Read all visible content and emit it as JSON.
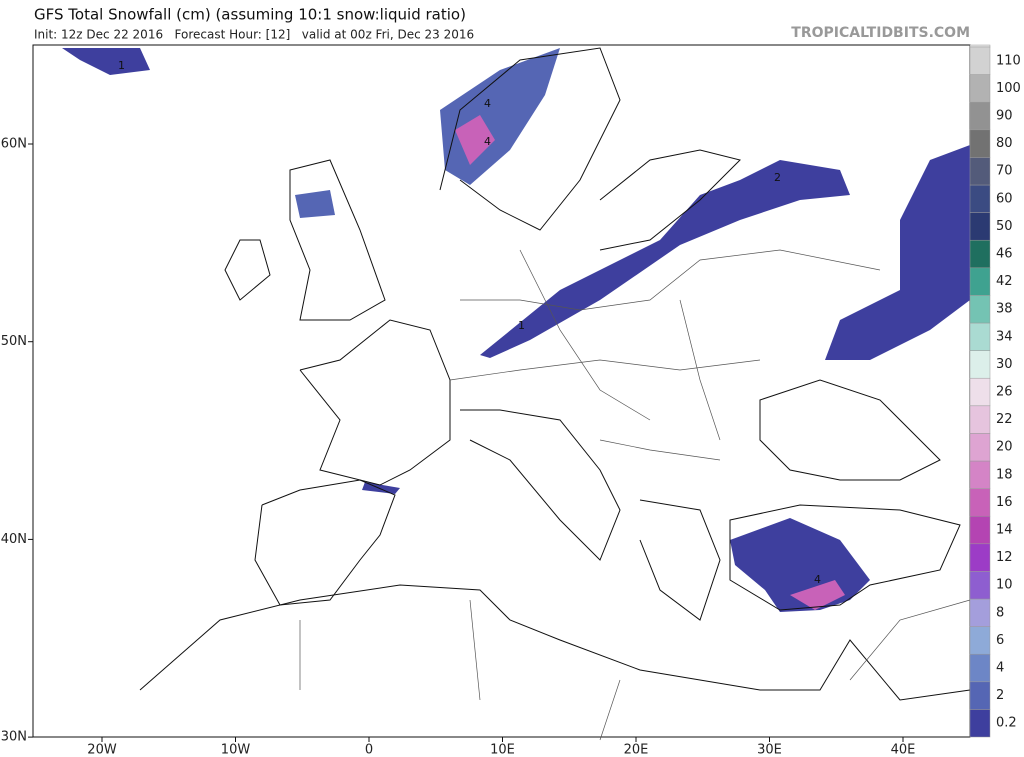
{
  "header": {
    "title": "GFS Total Snowfall (cm) (assuming 10:1 snow:liquid ratio)",
    "subtitle": "Init: 12z Dec 22 2016   Forecast Hour: [12]   valid at 00z Fri, Dec 23 2016",
    "source": "TROPICALTIDBITS.COM"
  },
  "map": {
    "lat_labels": [
      "60N",
      "50N",
      "40N",
      "30N"
    ],
    "lon_labels": [
      "20W",
      "10W",
      "0",
      "10E",
      "20E",
      "30E",
      "40E"
    ],
    "contour_labels": [
      "1",
      "4",
      "4",
      "2",
      "1",
      "4"
    ]
  },
  "colorbar": {
    "labels": [
      0.2,
      2,
      4,
      6,
      8,
      10,
      12,
      14,
      16,
      18,
      20,
      22,
      26,
      30,
      34,
      38,
      42,
      46,
      50,
      60,
      70,
      80,
      90,
      100,
      110
    ],
    "colors": [
      "#3e3f9e",
      "#5566b4",
      "#6d86c6",
      "#8eaad8",
      "#a49edc",
      "#8e5ed0",
      "#9c3cc6",
      "#b444b2",
      "#c862b8",
      "#d484c6",
      "#dea4d2",
      "#e6c4de",
      "#eedfea",
      "#dcefea",
      "#aadbd2",
      "#74c3b3",
      "#3fa290",
      "#1f6f5f",
      "#2b3a72",
      "#3b4b82",
      "#535b7a",
      "#727272",
      "#929292",
      "#b2b2b2",
      "#d2d2d2"
    ]
  }
}
